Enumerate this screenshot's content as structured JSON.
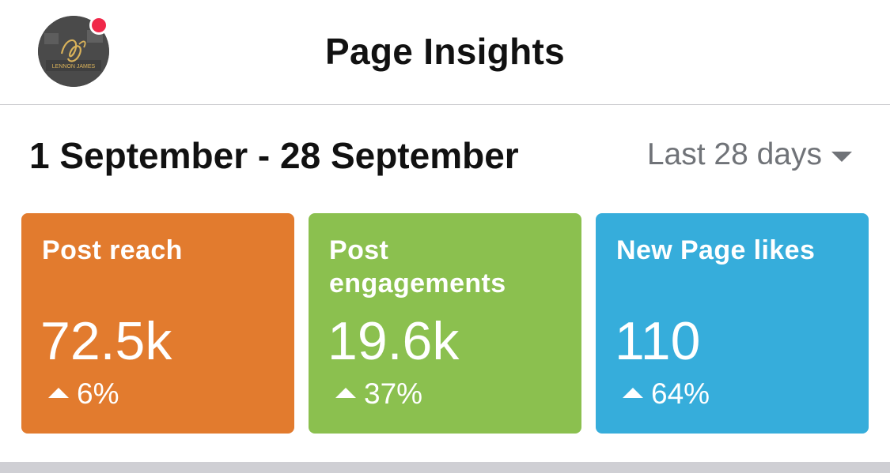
{
  "header": {
    "title": "Page Insights",
    "avatar_text": "LENNON JAMES",
    "notification_color": "#f02849"
  },
  "range": {
    "dates": "1 September - 28 September",
    "period": "Last 28 days"
  },
  "cards": [
    {
      "label": "Post reach",
      "value": "72.5k",
      "change": "6%",
      "color": "#e27b2e"
    },
    {
      "label": "Post engagements",
      "value": "19.6k",
      "change": "37%",
      "color": "#8bc04f"
    },
    {
      "label": "New Page likes",
      "value": "110",
      "change": "64%",
      "color": "#36addb"
    }
  ]
}
